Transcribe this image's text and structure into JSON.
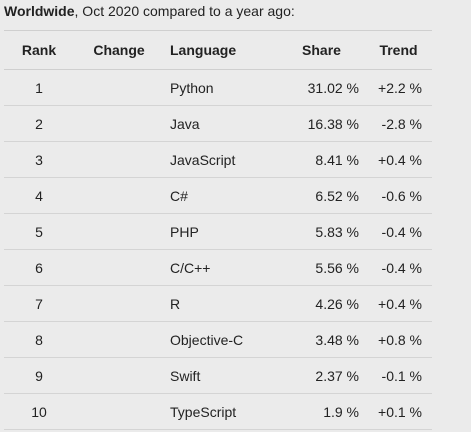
{
  "caption": {
    "bold": "Worldwide",
    "rest": ", Oct 2020 compared to a year ago:"
  },
  "table": {
    "headers": {
      "rank": "Rank",
      "change": "Change",
      "language": "Language",
      "share": "Share",
      "trend": "Trend"
    },
    "rows": [
      {
        "rank": "1",
        "change": "",
        "language": "Python",
        "share": "31.02 %",
        "trend": "+2.2 %"
      },
      {
        "rank": "2",
        "change": "",
        "language": "Java",
        "share": "16.38 %",
        "trend": "-2.8 %"
      },
      {
        "rank": "3",
        "change": "",
        "language": "JavaScript",
        "share": "8.41 %",
        "trend": "+0.4 %"
      },
      {
        "rank": "4",
        "change": "",
        "language": "C#",
        "share": "6.52 %",
        "trend": "-0.6 %"
      },
      {
        "rank": "5",
        "change": "",
        "language": "PHP",
        "share": "5.83 %",
        "trend": "-0.4 %"
      },
      {
        "rank": "6",
        "change": "",
        "language": "C/C++",
        "share": "5.56 %",
        "trend": "-0.4 %"
      },
      {
        "rank": "7",
        "change": "",
        "language": "R",
        "share": "4.26 %",
        "trend": "+0.4 %"
      },
      {
        "rank": "8",
        "change": "",
        "language": "Objective-C",
        "share": "3.48 %",
        "trend": "+0.8 %"
      },
      {
        "rank": "9",
        "change": "",
        "language": "Swift",
        "share": "2.37 %",
        "trend": "-0.1 %"
      },
      {
        "rank": "10",
        "change": "",
        "language": "TypeScript",
        "share": "1.9 %",
        "trend": "+0.1 %"
      }
    ]
  },
  "colors": {
    "background": "#ebebeb",
    "text": "#222222",
    "row_border": "#d4d4d4"
  }
}
